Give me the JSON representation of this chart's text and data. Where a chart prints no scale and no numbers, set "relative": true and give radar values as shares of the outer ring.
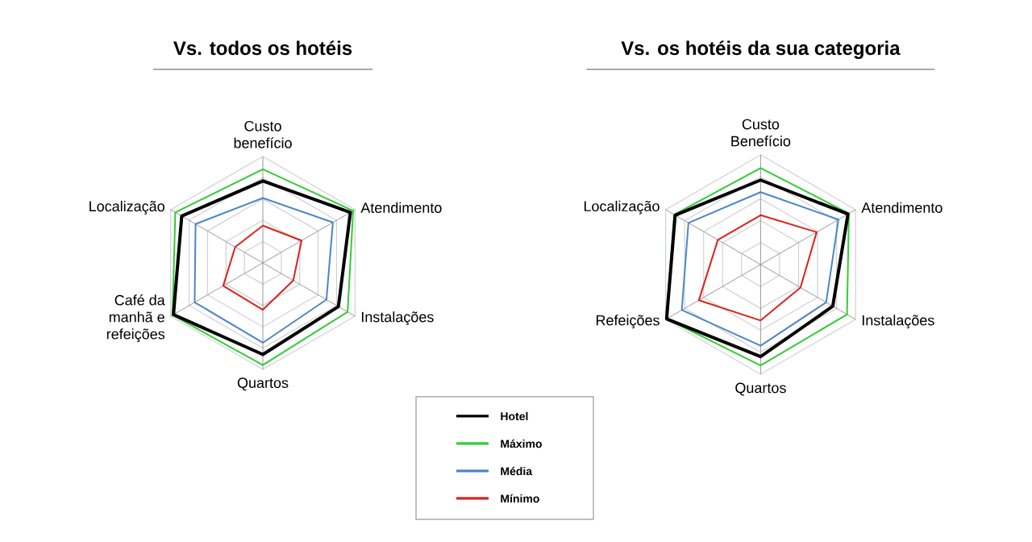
{
  "chart_data": [
    {
      "type": "radar",
      "title": "Vs. todos os hotéis",
      "relative": true,
      "grid": true,
      "legend": "bottom",
      "categories": [
        "Custo benefício",
        "Atendimento",
        "Instalações",
        "Quartos",
        "Café da manhã e refeições",
        "Localização"
      ],
      "series": [
        {
          "name": "Hotel",
          "color": "#000000",
          "values": [
            0.77,
            0.95,
            0.82,
            0.86,
            0.97,
            0.88
          ]
        },
        {
          "name": "Máximo",
          "color": "#33cc33",
          "values": [
            0.88,
            0.98,
            0.92,
            0.96,
            0.98,
            0.95
          ]
        },
        {
          "name": "Média",
          "color": "#4a86c8",
          "values": [
            0.61,
            0.76,
            0.69,
            0.75,
            0.74,
            0.73
          ]
        },
        {
          "name": "Mínimo",
          "color": "#e0201b",
          "values": [
            0.35,
            0.42,
            0.33,
            0.44,
            0.43,
            0.3
          ]
        }
      ]
    },
    {
      "type": "radar",
      "title": "Vs. os hotéis da sua categoria",
      "relative": true,
      "grid": true,
      "categories": [
        "Custo Benefício",
        "Atendimento",
        "Instalações",
        "Quartos",
        "Refeições",
        "Localização"
      ],
      "series": [
        {
          "color": "#000000",
          "values": [
            0.77,
            0.92,
            0.76,
            0.84,
            0.99,
            0.9
          ]
        },
        {
          "color": "#33cc33",
          "values": [
            0.88,
            0.93,
            0.91,
            0.92,
            0.99,
            0.91
          ]
        },
        {
          "color": "#4a86c8",
          "values": [
            0.66,
            0.82,
            0.69,
            0.74,
            0.83,
            0.76
          ]
        },
        {
          "color": "#e0201b",
          "values": [
            0.45,
            0.59,
            0.42,
            0.51,
            0.65,
            0.45
          ]
        }
      ]
    }
  ]
}
